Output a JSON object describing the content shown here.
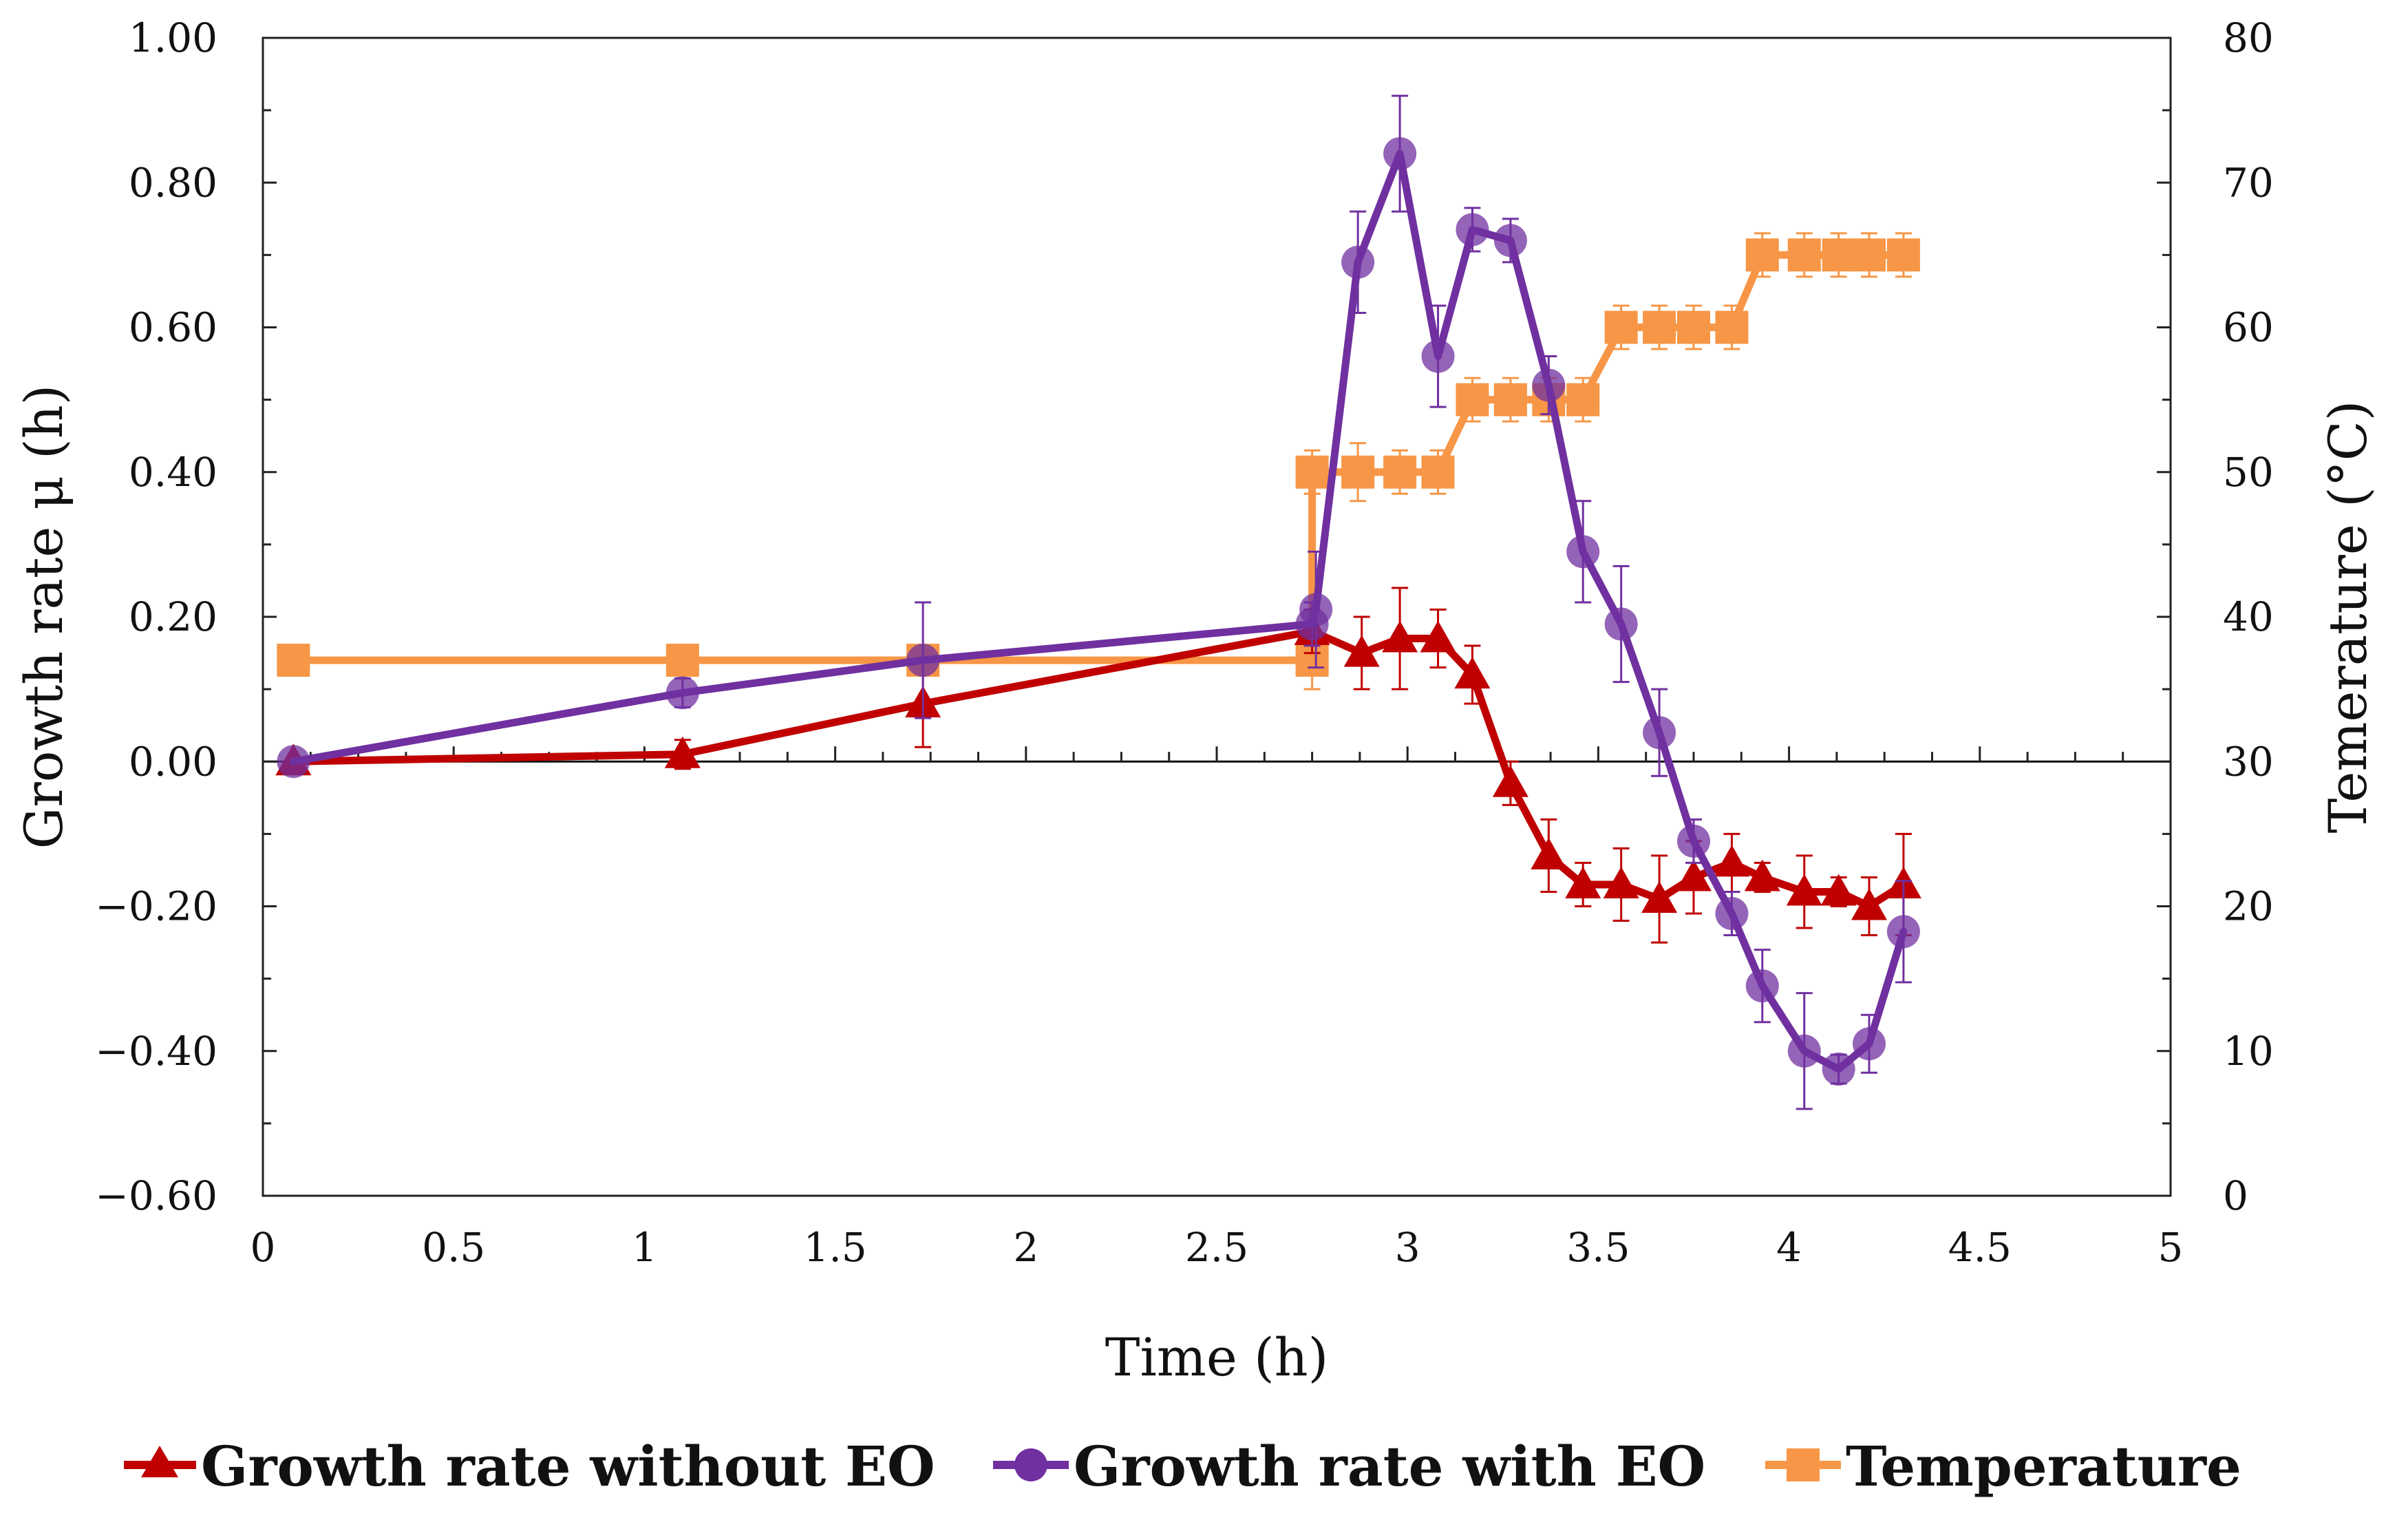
{
  "chart_data": {
    "type": "line",
    "xlabel": "Time (h)",
    "ylabel": "Growth rate μ (h)",
    "y2label": "Temerature (°C)",
    "xlim": [
      0,
      5
    ],
    "ylim": [
      -0.6,
      1.0
    ],
    "y2lim": [
      0,
      80
    ],
    "x_ticks": [
      "0",
      "0.5",
      "1",
      "1.5",
      "2",
      "2.5",
      "3",
      "3.5",
      "4",
      "4.5",
      "5"
    ],
    "y_ticks": [
      "−0.60",
      "−0.40",
      "−0.20",
      "0.00",
      "0.20",
      "0.40",
      "0.60",
      "0.80",
      "1.00"
    ],
    "y2_ticks": [
      "0",
      "10",
      "20",
      "30",
      "40",
      "50",
      "60",
      "70",
      "80"
    ],
    "legend_position": "bottom",
    "series": [
      {
        "name": "Growth rate without EO",
        "axis": "left",
        "color": "#c00000",
        "marker": "triangle",
        "x": [
          0.08,
          1.1,
          1.73,
          2.75,
          2.88,
          2.98,
          3.08,
          3.17,
          3.27,
          3.37,
          3.46,
          3.56,
          3.66,
          3.75,
          3.85,
          3.93,
          4.04,
          4.13,
          4.21,
          4.3
        ],
        "y": [
          0.0,
          0.01,
          0.08,
          0.18,
          0.15,
          0.17,
          0.17,
          0.12,
          -0.03,
          -0.13,
          -0.17,
          -0.17,
          -0.19,
          -0.16,
          -0.14,
          -0.16,
          -0.18,
          -0.18,
          -0.2,
          -0.17
        ],
        "err": [
          0,
          0.02,
          0.06,
          0.03,
          0.05,
          0.07,
          0.04,
          0.04,
          0.03,
          0.05,
          0.03,
          0.05,
          0.06,
          0.05,
          0.04,
          0.02,
          0.05,
          0.02,
          0.04,
          0.07
        ]
      },
      {
        "name": "Growth rate with EO",
        "axis": "left",
        "color": "#7030a0",
        "marker": "circle",
        "x": [
          0.08,
          1.1,
          1.73,
          2.75,
          2.76,
          2.87,
          2.98,
          3.08,
          3.17,
          3.27,
          3.37,
          3.46,
          3.56,
          3.66,
          3.75,
          3.85,
          3.93,
          4.04,
          4.13,
          4.21,
          4.3
        ],
        "y": [
          0.0,
          0.095,
          0.14,
          0.19,
          0.21,
          0.69,
          0.84,
          0.56,
          0.735,
          0.72,
          0.52,
          0.29,
          0.19,
          0.04,
          -0.11,
          -0.21,
          -0.31,
          -0.4,
          -0.425,
          -0.39,
          -0.235
        ],
        "err": [
          0,
          0.02,
          0.08,
          0.03,
          0.08,
          0.07,
          0.08,
          0.07,
          0.03,
          0.03,
          0.04,
          0.07,
          0.08,
          0.06,
          0.03,
          0.03,
          0.05,
          0.08,
          0.02,
          0.04,
          0.07
        ]
      },
      {
        "name": "Temperature",
        "axis": "right",
        "color": "#f79646",
        "marker": "square",
        "x": [
          0.08,
          1.1,
          1.73,
          2.75,
          2.75,
          2.87,
          2.98,
          3.08,
          3.17,
          3.27,
          3.37,
          3.46,
          3.56,
          3.66,
          3.75,
          3.85,
          3.93,
          4.04,
          4.13,
          4.21,
          4.3
        ],
        "y": [
          37,
          37,
          37,
          37,
          50,
          50,
          50,
          50,
          55,
          55,
          55,
          55,
          60,
          60,
          60,
          60,
          65,
          65,
          65,
          65,
          65
        ],
        "err": [
          0,
          0,
          0,
          2,
          1.5,
          2,
          1.5,
          1.5,
          1.5,
          1.5,
          1.5,
          1.5,
          1.5,
          1.5,
          1.5,
          1.5,
          1.5,
          1.5,
          1.5,
          1.5,
          1.5
        ]
      }
    ]
  }
}
